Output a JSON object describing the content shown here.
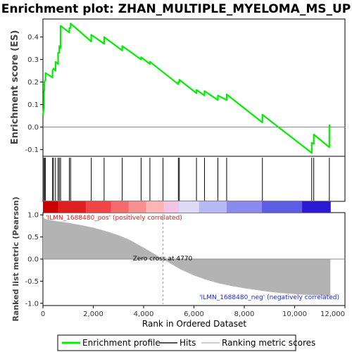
{
  "chart_data": {
    "type": "line",
    "title": "Enrichment plot: ZHAN_MULTIPLE_MYELOMA_MS_UP",
    "es_panel": {
      "ylabel": "Enrichment score (ES)",
      "ylim": [
        -0.13,
        0.48
      ],
      "yticks": [
        "0.4",
        "0.3",
        "0.2",
        "0.1",
        "0.0",
        "-0.1"
      ],
      "ytick_values": [
        0.4,
        0.3,
        0.2,
        0.1,
        0.0,
        -0.1
      ],
      "series": [
        {
          "name": "Enrichment profile",
          "color": "#00ee00",
          "x": [
            0,
            40,
            40,
            60,
            60,
            100,
            100,
            380,
            380,
            420,
            420,
            500,
            500,
            600,
            600,
            650,
            650,
            700,
            700,
            1050,
            1050,
            1100,
            1100,
            1920,
            1920,
            2430,
            2430,
            3150,
            3150,
            3900,
            3900,
            4250,
            4250,
            5380,
            5380,
            5420,
            5420,
            6100,
            6100,
            6420,
            6420,
            6950,
            6950,
            7300,
            7300,
            8720,
            8720,
            10680,
            10680,
            10760,
            10760,
            11380,
            11380,
            11420
          ],
          "y": [
            0.05,
            0.09,
            0.15,
            0.17,
            0.2,
            0.21,
            0.24,
            0.22,
            0.25,
            0.26,
            0.26,
            0.25,
            0.29,
            0.28,
            0.33,
            0.33,
            0.36,
            0.35,
            0.45,
            0.42,
            0.44,
            0.44,
            0.46,
            0.38,
            0.41,
            0.37,
            0.4,
            0.34,
            0.36,
            0.3,
            0.31,
            0.28,
            0.29,
            0.19,
            0.2,
            0.2,
            0.21,
            0.15,
            0.165,
            0.14,
            0.16,
            0.12,
            0.14,
            0.12,
            0.145,
            0.02,
            0.055,
            -0.115,
            -0.07,
            -0.075,
            -0.033,
            -0.09,
            0.008,
            0.005
          ]
        }
      ],
      "zero_line": 0.0
    },
    "hits": [
      40,
      60,
      100,
      380,
      420,
      500,
      600,
      650,
      700,
      1050,
      1100,
      1920,
      2430,
      3150,
      3900,
      4250,
      4770,
      5380,
      5420,
      6100,
      6420,
      6950,
      7300,
      8720,
      10680,
      10760,
      11380
    ],
    "rank_panel": {
      "ylabel": "Ranked list metric (Pearson)",
      "xlabel": "Rank in Ordered Dataset",
      "xlim": [
        0,
        12000
      ],
      "xticks": [
        "0",
        "2,000",
        "4,000",
        "6,000",
        "8,000",
        "10,000",
        "12,000"
      ],
      "xtick_values": [
        0,
        2000,
        4000,
        6000,
        8000,
        10000,
        12000
      ],
      "ylim": [
        -1.05,
        1.05
      ],
      "yticks": [
        "1.0",
        "0.5",
        "0.0",
        "-0.5",
        "-1.0"
      ],
      "ytick_values": [
        1.0,
        0.5,
        0.0,
        -0.5,
        -1.0
      ],
      "metric_x": [
        0,
        50,
        200,
        500,
        1000,
        1500,
        2000,
        2500,
        3000,
        3500,
        4000,
        4500,
        4770,
        5000,
        5500,
        6000,
        6500,
        7000,
        7500,
        8000,
        8500,
        9000,
        9500,
        10000,
        10500,
        11000,
        11420
      ],
      "metric_y": [
        0.98,
        0.92,
        0.89,
        0.86,
        0.82,
        0.77,
        0.71,
        0.63,
        0.54,
        0.42,
        0.26,
        0.09,
        0.0,
        -0.08,
        -0.24,
        -0.37,
        -0.47,
        -0.55,
        -0.61,
        -0.66,
        -0.7,
        -0.74,
        -0.77,
        -0.79,
        -0.81,
        -0.82,
        -0.83
      ],
      "zero_cross_label": "Zero cross at 4770",
      "zero_cross": 4770,
      "pos_label": "'ILMN_1688480_pos' (positively correlated)",
      "neg_label": "'ILMN_1688480_neg' (negatively correlated)",
      "pos_color": "#e21818",
      "neg_color": "#1a2ad6"
    },
    "heatbar": {
      "colors": [
        "#cc0000",
        "#e02020",
        "#ef4545",
        "#f56a6a",
        "#f99090",
        "#fbb5b5",
        "#f4c4e4",
        "#dcdcf8",
        "#b8b8f4",
        "#8a8aee",
        "#5c5ce4",
        "#2a1ad0",
        "#1a0ab8"
      ],
      "stops": [
        0,
        600,
        1700,
        2700,
        3400,
        4100,
        4800,
        5400,
        6200,
        7300,
        8700,
        10300,
        11420
      ]
    },
    "legend": [
      {
        "label": "Enrichment profile",
        "color": "#00ee00"
      },
      {
        "label": "Hits",
        "color": "#555555"
      },
      {
        "label": "Ranking metric scores",
        "color": "#cccccc"
      }
    ]
  }
}
